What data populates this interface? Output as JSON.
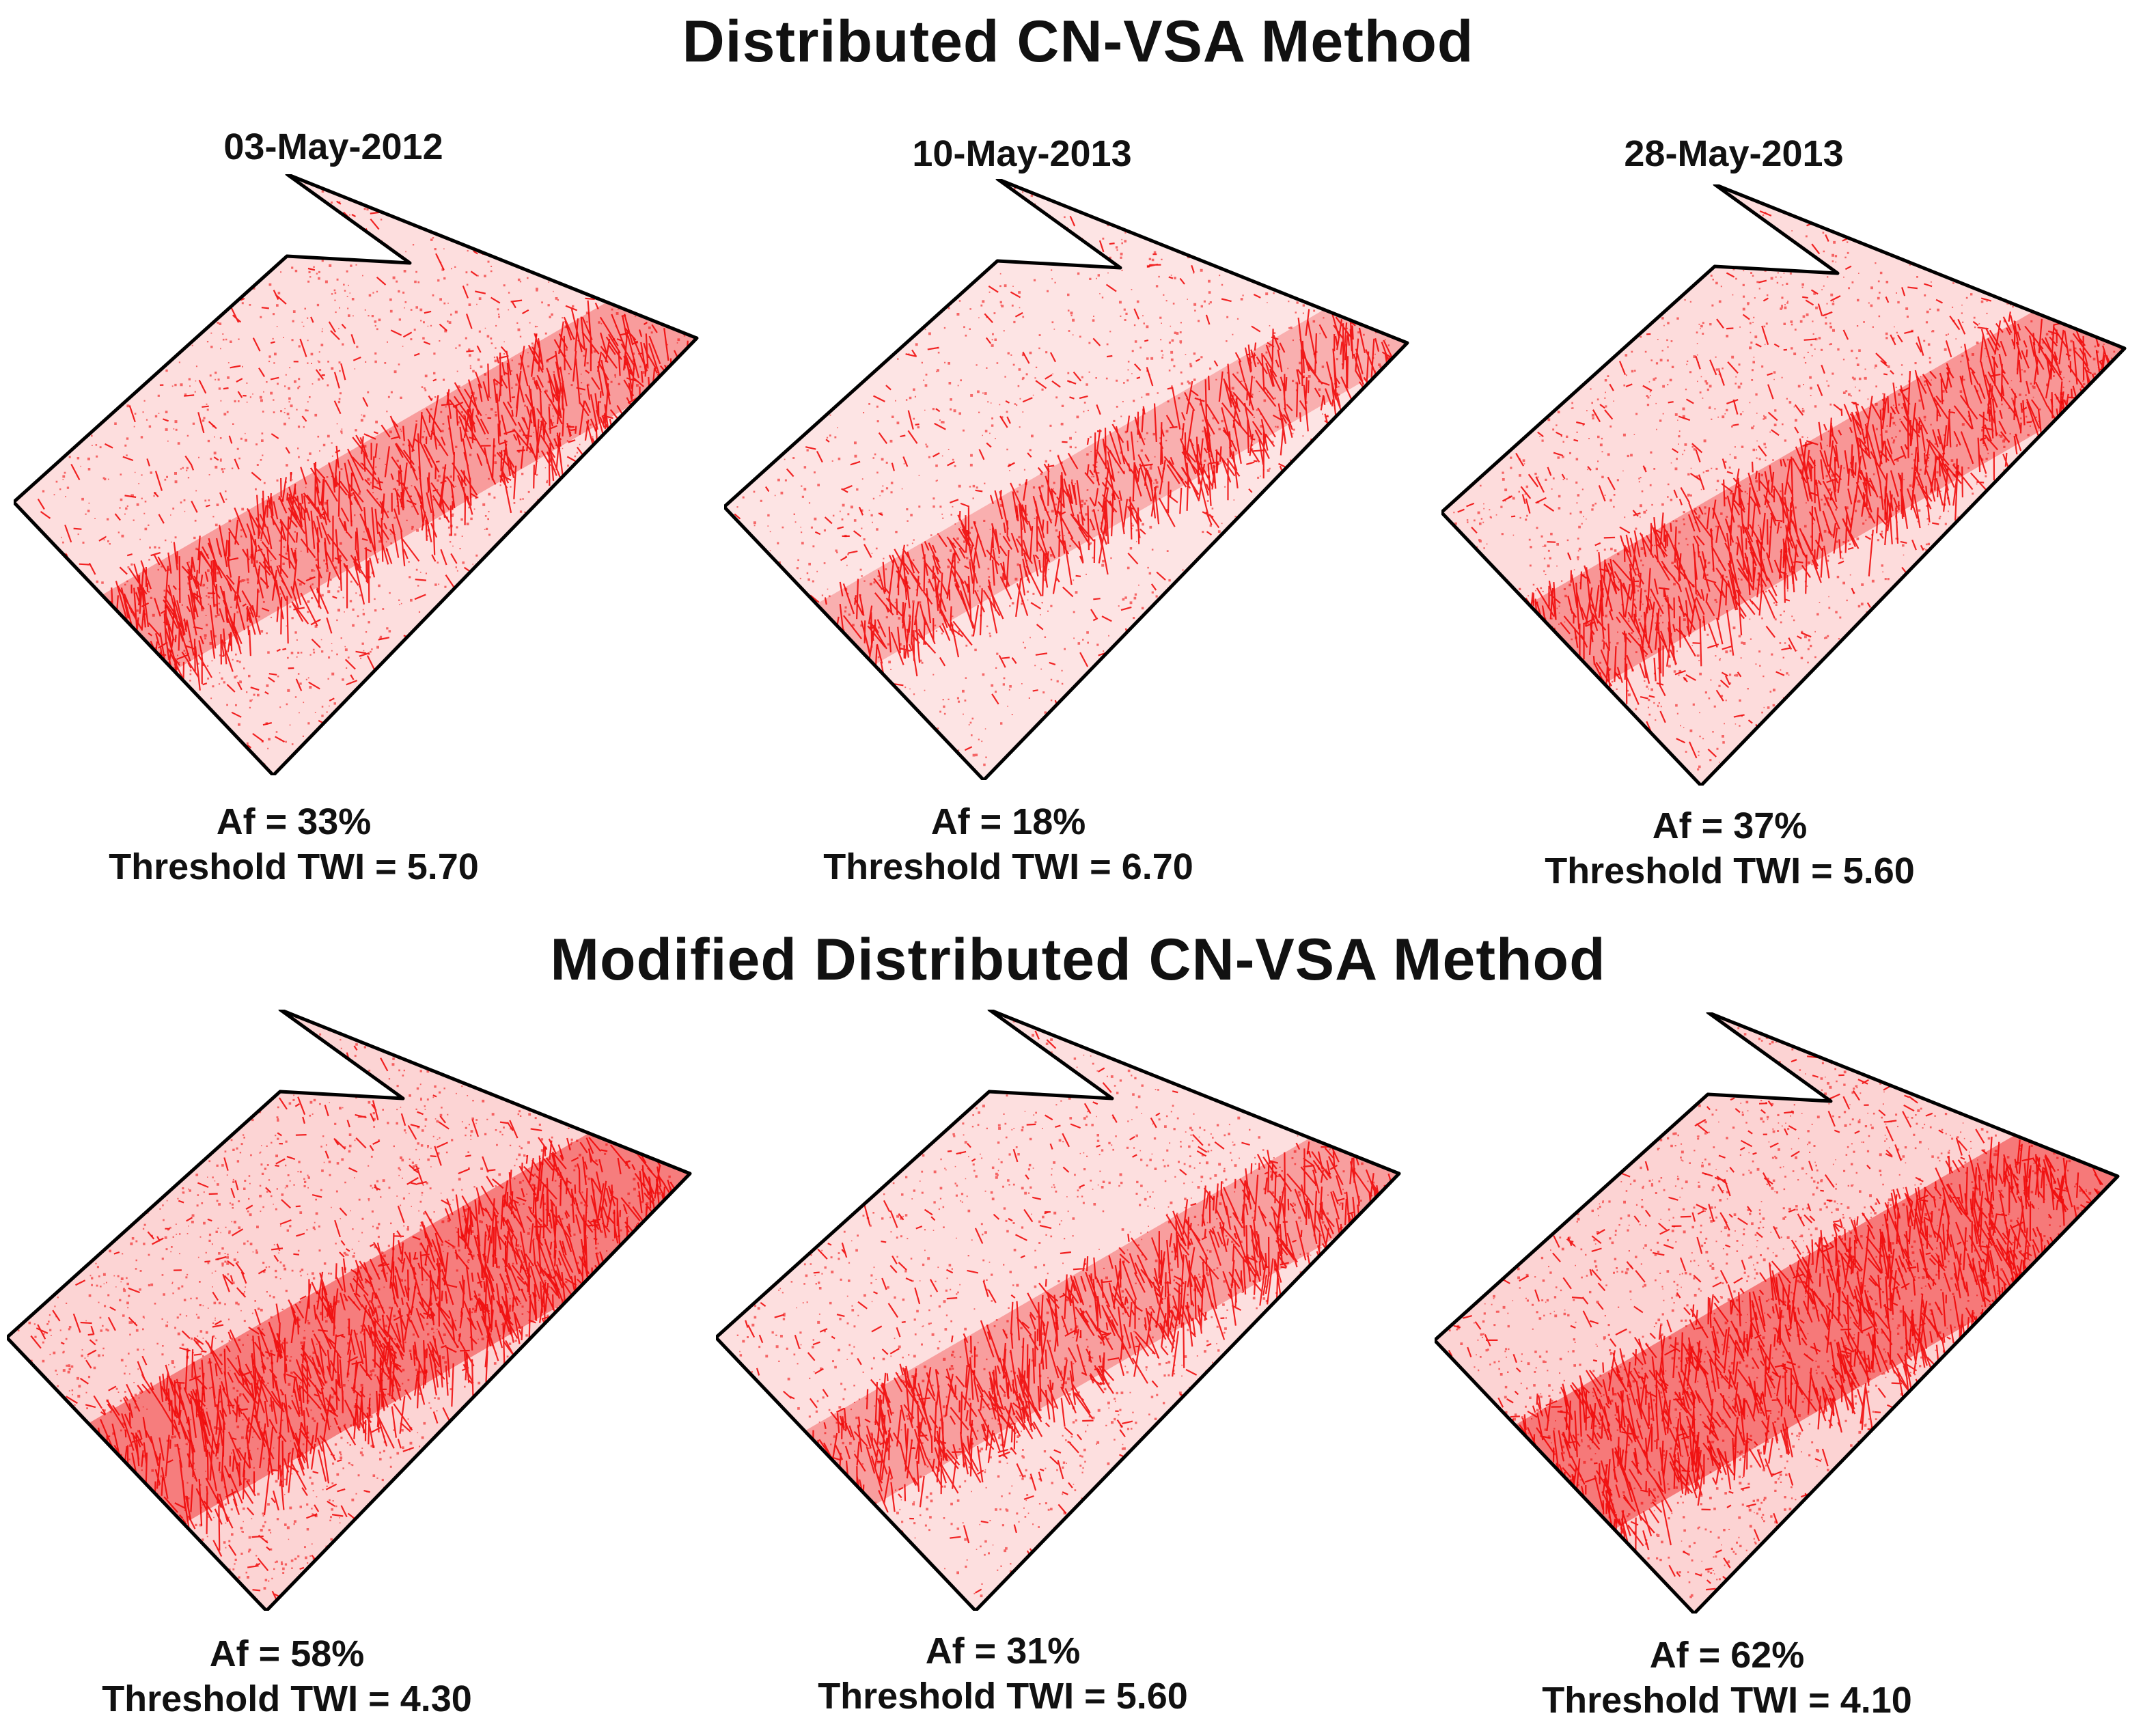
{
  "colors": {
    "wet_area": "#ee0000",
    "background": "#ffffff",
    "outline": "#000000"
  },
  "sections": [
    {
      "title": "Distributed CN-VSA Method",
      "panels": [
        {
          "date": "03-May-2012",
          "af": "Af = 33%",
          "threshold": "Threshold TWI = 5.70",
          "af_fraction": 0.33
        },
        {
          "date": "10-May-2013",
          "af": "Af = 18%",
          "threshold": "Threshold TWI = 6.70",
          "af_fraction": 0.18
        },
        {
          "date": "28-May-2013",
          "af": "Af = 37%",
          "threshold": "Threshold TWI = 5.60",
          "af_fraction": 0.37
        }
      ]
    },
    {
      "title": "Modified Distributed CN-VSA Method",
      "panels": [
        {
          "af": "Af = 58%",
          "threshold": "Threshold TWI = 4.30",
          "af_fraction": 0.58
        },
        {
          "af": "Af = 31%",
          "threshold": "Threshold TWI = 5.60",
          "af_fraction": 0.31
        },
        {
          "af": "Af = 62%",
          "threshold": "Threshold TWI = 4.10",
          "af_fraction": 0.62
        }
      ]
    }
  ]
}
